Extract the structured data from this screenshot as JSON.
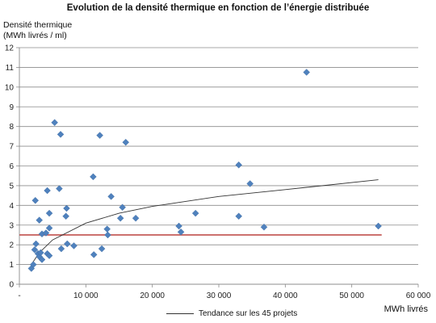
{
  "chart_data": {
    "type": "scatter",
    "title": "Evolution de la densité thermique en fonction de l’énergie distribuée",
    "ylabel_line1": "Densité thermique",
    "ylabel_line2": "(MWh livrés / ml)",
    "xlabel": "MWh livrés",
    "xlim": [
      0,
      60000
    ],
    "ylim": [
      0,
      12
    ],
    "x_ticks": [
      0,
      10000,
      20000,
      30000,
      40000,
      50000,
      60000
    ],
    "x_tick_labels": [
      "-",
      "10 000",
      "20 000",
      "30 000",
      "40 000",
      "50 000",
      "60 000"
    ],
    "y_ticks": [
      0,
      1,
      2,
      3,
      4,
      5,
      6,
      7,
      8,
      9,
      10,
      11,
      12
    ],
    "grid": true,
    "marker_color": "#4F81BD",
    "points": [
      {
        "x": 1800,
        "y": 0.8
      },
      {
        "x": 2100,
        "y": 1.0
      },
      {
        "x": 2300,
        "y": 1.75
      },
      {
        "x": 2500,
        "y": 2.05
      },
      {
        "x": 2800,
        "y": 1.55
      },
      {
        "x": 3000,
        "y": 1.4
      },
      {
        "x": 3200,
        "y": 1.6
      },
      {
        "x": 3400,
        "y": 1.25
      },
      {
        "x": 2400,
        "y": 4.25
      },
      {
        "x": 3000,
        "y": 3.25
      },
      {
        "x": 3400,
        "y": 2.55
      },
      {
        "x": 4000,
        "y": 2.6
      },
      {
        "x": 4200,
        "y": 1.55
      },
      {
        "x": 4500,
        "y": 1.45
      },
      {
        "x": 4500,
        "y": 2.85
      },
      {
        "x": 4500,
        "y": 3.6
      },
      {
        "x": 4200,
        "y": 4.75
      },
      {
        "x": 5300,
        "y": 8.2
      },
      {
        "x": 6000,
        "y": 4.85
      },
      {
        "x": 6200,
        "y": 7.6
      },
      {
        "x": 6300,
        "y": 1.8
      },
      {
        "x": 7000,
        "y": 3.45
      },
      {
        "x": 7100,
        "y": 3.85
      },
      {
        "x": 7200,
        "y": 2.05
      },
      {
        "x": 8200,
        "y": 1.95
      },
      {
        "x": 11100,
        "y": 5.45
      },
      {
        "x": 11200,
        "y": 1.5
      },
      {
        "x": 12100,
        "y": 7.55
      },
      {
        "x": 12400,
        "y": 1.8
      },
      {
        "x": 13200,
        "y": 2.8
      },
      {
        "x": 13300,
        "y": 2.5
      },
      {
        "x": 13800,
        "y": 4.45
      },
      {
        "x": 15200,
        "y": 3.35
      },
      {
        "x": 15500,
        "y": 3.9
      },
      {
        "x": 16000,
        "y": 7.2
      },
      {
        "x": 17500,
        "y": 3.35
      },
      {
        "x": 24000,
        "y": 2.95
      },
      {
        "x": 24300,
        "y": 2.65
      },
      {
        "x": 26500,
        "y": 3.6
      },
      {
        "x": 33000,
        "y": 6.05
      },
      {
        "x": 33000,
        "y": 3.45
      },
      {
        "x": 34700,
        "y": 5.1
      },
      {
        "x": 36800,
        "y": 2.9
      },
      {
        "x": 43200,
        "y": 10.75
      },
      {
        "x": 54000,
        "y": 2.95
      }
    ],
    "reference_line": {
      "y": 2.5,
      "color": "#C0504D"
    },
    "trendline": {
      "name": "Tendance sur les 45 projets",
      "type": "logarithmic",
      "color": "#333333",
      "points": [
        [
          1800,
          1.0
        ],
        [
          3000,
          1.6
        ],
        [
          5000,
          2.25
        ],
        [
          10000,
          3.1
        ],
        [
          15000,
          3.6
        ],
        [
          20000,
          3.95
        ],
        [
          30000,
          4.45
        ],
        [
          40000,
          4.8
        ],
        [
          54000,
          5.3
        ]
      ]
    }
  }
}
